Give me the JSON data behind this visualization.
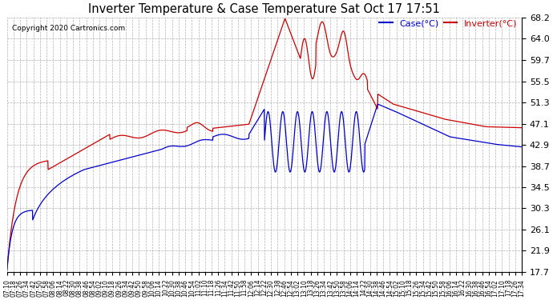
{
  "title": "Inverter Temperature & Case Temperature Sat Oct 17 17:51",
  "copyright": "Copyright 2020 Cartronics.com",
  "legend_case": "Case(°C)",
  "legend_inverter": "Inverter(°C)",
  "yticks": [
    17.7,
    21.9,
    26.1,
    30.3,
    34.5,
    38.7,
    42.9,
    47.1,
    51.3,
    55.5,
    59.7,
    64.0,
    68.2
  ],
  "ymin": 17.7,
  "ymax": 68.2,
  "bg_color": "#ffffff",
  "grid_color": "#b0b0b0",
  "case_color": "#0000cc",
  "inverter_color": "#cc0000",
  "xtick_start_hour": 7,
  "xtick_start_min": 10,
  "xtick_interval_min": 8
}
